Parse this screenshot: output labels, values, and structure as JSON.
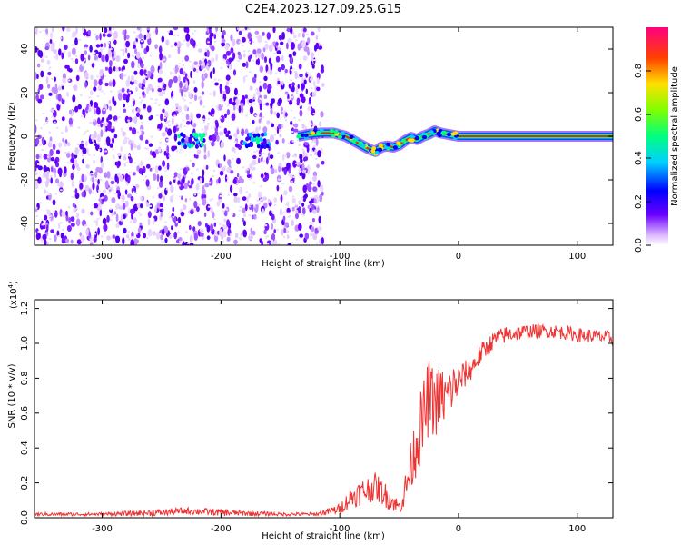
{
  "title": "C2E4.2023.127.09.25.G15",
  "colors": {
    "background": "#ffffff",
    "snr_line": "#f03232",
    "spectrogram_dots": "#6a00ff",
    "ridge_core": "#ff1a1a",
    "ridge_edge": "#00ff7f"
  },
  "chart_data": [
    {
      "type": "heatmap",
      "name": "spectrogram",
      "title": "",
      "xlabel": "Height of straight line (km)",
      "ylabel": "Frequency (Hz)",
      "xlim": [
        -357,
        130
      ],
      "ylim": [
        -50,
        50
      ],
      "xticks": [
        -300,
        -200,
        -100,
        0,
        100
      ],
      "yticks": [
        40,
        20,
        0,
        -20,
        -40
      ],
      "noise_region_x": [
        -357,
        -120
      ],
      "grid": false,
      "ridge": {
        "x": [
          -135,
          -125,
          -115,
          -105,
          -95,
          -85,
          -75,
          -70,
          -65,
          -60,
          -55,
          -50,
          -45,
          -40,
          -35,
          -30,
          -25,
          -20,
          -15,
          -10,
          -5,
          0,
          10,
          30,
          60,
          90,
          130
        ],
        "y": [
          0,
          1,
          1.5,
          1.5,
          0,
          -3,
          -6,
          -7,
          -5,
          -4.5,
          -5,
          -4,
          -2,
          -0.5,
          -1.5,
          0,
          1,
          2.5,
          1.5,
          1,
          0.5,
          0,
          0,
          0,
          0,
          0,
          0
        ]
      },
      "clusters": [
        {
          "x": -225,
          "y": -2
        },
        {
          "x": -170,
          "y": -2
        }
      ],
      "colorbar": {
        "label": "Normalized spectral amplitude",
        "range": [
          0,
          1
        ],
        "ticks": [
          0.0,
          0.2,
          0.4,
          0.6,
          0.8
        ],
        "colormap": "rainbow"
      }
    },
    {
      "type": "line",
      "name": "snr",
      "title": "",
      "xlabel": "Height of straight line (km)",
      "ylabel": "SNR (10 * v/v)",
      "scale_label": "(x10",
      "scale_exponent": "4",
      "xlim": [
        -357,
        130
      ],
      "ylim": [
        0,
        1.25
      ],
      "xticks": [
        -300,
        -200,
        -100,
        0,
        100
      ],
      "yticks": [
        0.0,
        0.2,
        0.4,
        0.6,
        0.8,
        1.0,
        1.2
      ],
      "grid": false,
      "series": [
        {
          "x": [
            -357,
            -300,
            -250,
            -230,
            -200,
            -150,
            -120,
            -100,
            -90,
            -80,
            -70,
            -60,
            -50,
            -45,
            -40,
            -35,
            -30,
            -25,
            -20,
            -15,
            -10,
            -5,
            0,
            5,
            10,
            20,
            30,
            40,
            60,
            80,
            100,
            130
          ],
          "values": [
            0.02,
            0.02,
            0.03,
            0.04,
            0.03,
            0.02,
            0.02,
            0.05,
            0.12,
            0.15,
            0.18,
            0.12,
            0.06,
            0.15,
            0.3,
            0.45,
            0.55,
            0.7,
            0.65,
            0.7,
            0.68,
            0.75,
            0.78,
            0.82,
            0.85,
            0.95,
            1.02,
            1.05,
            1.07,
            1.07,
            1.05,
            1.03
          ],
          "noise": [
            0.01,
            0.01,
            0.02,
            0.02,
            0.02,
            0.01,
            0.01,
            0.03,
            0.06,
            0.08,
            0.08,
            0.07,
            0.04,
            0.1,
            0.15,
            0.2,
            0.22,
            0.22,
            0.2,
            0.18,
            0.16,
            0.14,
            0.1,
            0.08,
            0.07,
            0.06,
            0.05,
            0.05,
            0.04,
            0.04,
            0.04,
            0.04
          ]
        }
      ]
    }
  ]
}
